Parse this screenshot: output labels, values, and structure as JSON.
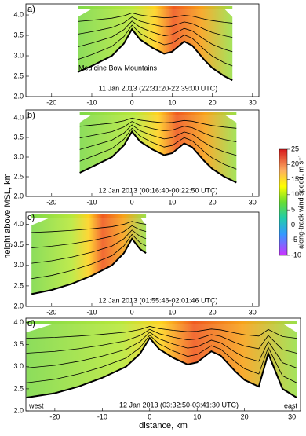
{
  "figure": {
    "y_label": "height above MSL, km",
    "x_label": "distance, km",
    "colorbar": {
      "label": "along-track wind speed, m s⁻¹",
      "lim": [
        -10,
        25
      ],
      "ticks": [
        25,
        20,
        15,
        10,
        5,
        0,
        -5,
        -10
      ]
    }
  },
  "chart_data": [
    {
      "type": "line",
      "panel_label": "a)",
      "caption": "11 Jan 2013 (22:31:20-22:39:00 UTC)",
      "annotation": "Medicine Bow Mountains",
      "xlim": [
        -26.4,
        31.6
      ],
      "ylim": [
        2,
        4.27
      ],
      "xticks": [
        -20,
        -10,
        0,
        10,
        20,
        30
      ],
      "yticks": [
        {
          "value": 2,
          "label": "2.0"
        },
        {
          "value": 2.5,
          "label": "2.5"
        },
        {
          "value": 3,
          "label": "3.0"
        },
        {
          "value": 3.5,
          "label": "3.5"
        },
        {
          "value": 4,
          "label": "4.0"
        }
      ],
      "x": [
        -13.5,
        -10,
        -5,
        -2,
        0,
        2,
        5,
        8,
        10,
        13,
        15,
        18,
        20,
        23,
        25
      ],
      "values": [
        2.6,
        2.75,
        3.0,
        3.3,
        3.65,
        3.4,
        3.2,
        3.05,
        3.1,
        3.35,
        3.25,
        2.9,
        2.7,
        2.5,
        2.4
      ],
      "color": "#000000"
    },
    {
      "type": "line",
      "panel_label": "b)",
      "caption": "12 Jan 2013 (00:16:40-00:22:50 UTC)",
      "xlim": [
        -26.4,
        31.6
      ],
      "ylim": [
        2,
        4.2
      ],
      "xticks": [
        -20,
        -10,
        0,
        10,
        20,
        30
      ],
      "yticks": [
        {
          "value": 2,
          "label": "2.0"
        },
        {
          "value": 2.5,
          "label": "2.5"
        },
        {
          "value": 3,
          "label": "3.0"
        },
        {
          "value": 3.5,
          "label": "3.5"
        },
        {
          "value": 4,
          "label": "4.0"
        }
      ],
      "x": [
        -13,
        -10,
        -5,
        -2,
        0,
        2,
        5,
        8,
        10,
        13,
        15,
        18,
        20,
        23,
        26
      ],
      "values": [
        2.6,
        2.75,
        3.0,
        3.3,
        3.65,
        3.4,
        3.2,
        3.05,
        3.1,
        3.35,
        3.25,
        2.9,
        2.7,
        2.5,
        2.35
      ],
      "color": "#000000"
    },
    {
      "type": "line",
      "panel_label": "c)",
      "caption": "12 Jan 2013 (01:55:46-02:01:46 UTC)",
      "xlim": [
        -26.4,
        31.6
      ],
      "ylim": [
        2,
        4.3
      ],
      "xticks": [
        -20,
        -10,
        0,
        10,
        20,
        30
      ],
      "yticks": [
        {
          "value": 2,
          "label": "2.0"
        },
        {
          "value": 2.5,
          "label": "2.5"
        },
        {
          "value": 3,
          "label": "3.0"
        },
        {
          "value": 3.5,
          "label": "3.5"
        },
        {
          "value": 4,
          "label": "4.0"
        }
      ],
      "x": [
        -25,
        -20,
        -15,
        -10,
        -5,
        -2,
        0,
        2,
        3.5
      ],
      "values": [
        2.3,
        2.4,
        2.55,
        2.75,
        3.0,
        3.3,
        3.65,
        3.4,
        3.3
      ],
      "color": "#000000"
    },
    {
      "type": "line",
      "panel_label": "d)",
      "caption": "12 Jan 2013 (03:32:50-03:41:30 UTC)",
      "west": "west",
      "east": "east",
      "xlim": [
        -26.1,
        31.8
      ],
      "ylim": [
        2,
        4.1
      ],
      "xticks": [
        -20,
        -10,
        0,
        10,
        20,
        30
      ],
      "yticks": [
        {
          "value": 2,
          "label": "2.0"
        },
        {
          "value": 2.5,
          "label": "2.5"
        },
        {
          "value": 3,
          "label": "3.0"
        },
        {
          "value": 3.5,
          "label": "3.5"
        },
        {
          "value": 4,
          "label": "4.0"
        }
      ],
      "x": [
        -26,
        -20,
        -15,
        -10,
        -5,
        -2,
        0,
        2,
        5,
        8,
        10,
        13,
        15,
        18,
        20,
        23,
        25,
        28,
        31
      ],
      "values": [
        2.3,
        2.4,
        2.55,
        2.75,
        3.0,
        3.3,
        3.65,
        3.4,
        3.2,
        3.05,
        3.1,
        3.35,
        3.25,
        2.9,
        2.7,
        2.55,
        3.3,
        2.5,
        2.3
      ],
      "color": "#000000"
    }
  ]
}
